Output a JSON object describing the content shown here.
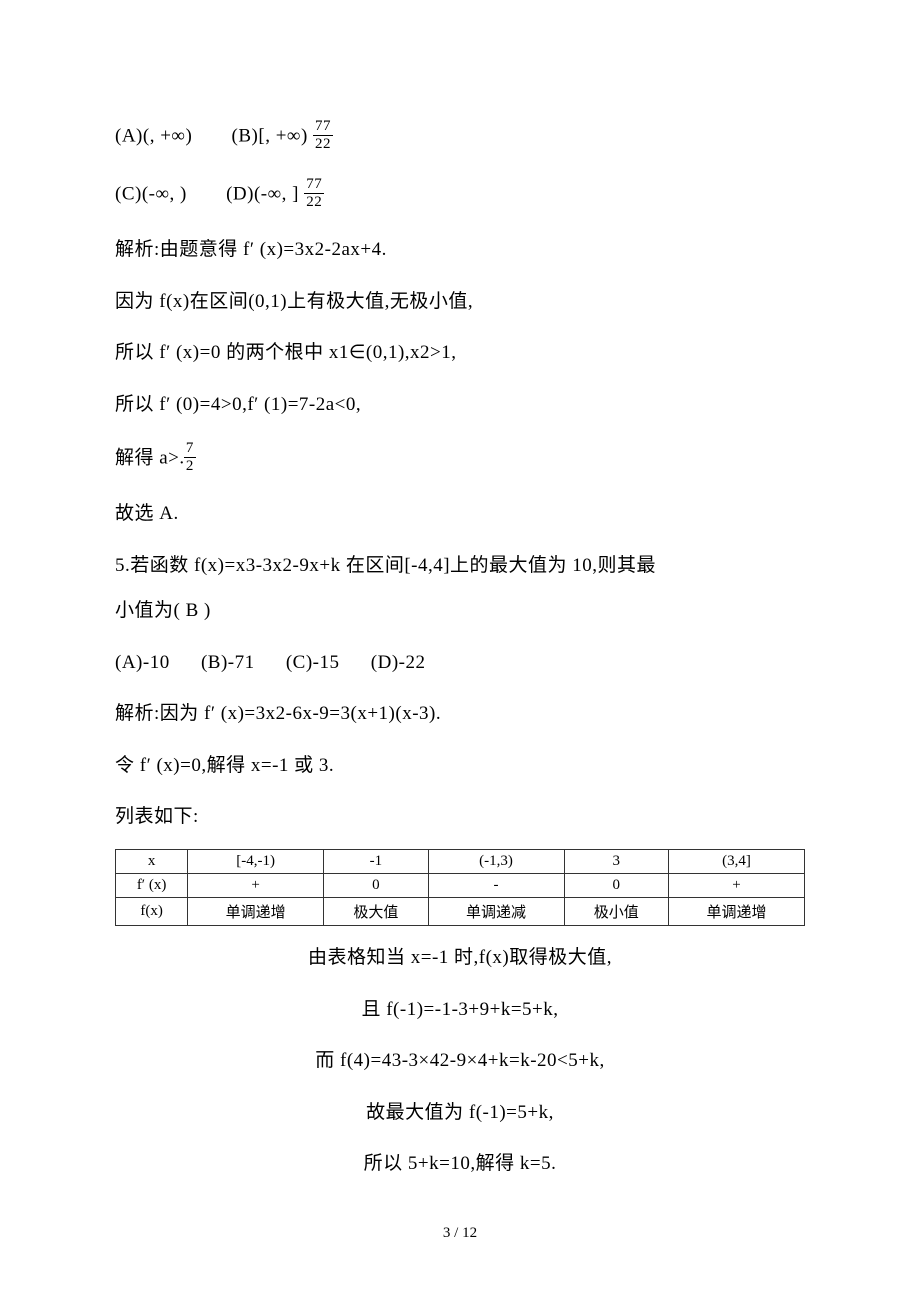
{
  "opts1": {
    "a": "(A)(, +∞)",
    "b": "(B)[, +∞)",
    "frac_num": "77",
    "frac_den": "22"
  },
  "opts2": {
    "c": "(C)(-∞, )",
    "d": "(D)(-∞, ]",
    "frac_num": "77",
    "frac_den": "22"
  },
  "p1": "解析:由题意得 f′ (x)=3x2-2ax+4.",
  "p2": "因为 f(x)在区间(0,1)上有极大值,无极小值,",
  "p3": "所以 f′ (x)=0 的两个根中 x1∈(0,1),x2>1,",
  "p4": "所以 f′ (0)=4>0,f′ (1)=7-2a<0,",
  "p5_pre": "解得 a>.",
  "p5_frac_num": "7",
  "p5_frac_den": "2",
  "p6": "故选 A.",
  "p7a": "5.若函数 f(x)=x3-3x2-9x+k 在区间[-4,4]上的最大值为 10,则其最",
  "p7b": "小值为(  B  )",
  "opts3": {
    "a": "(A)-10",
    "b": "(B)-71",
    "c": "(C)-15",
    "d": "(D)-22"
  },
  "p8": "解析:因为 f′ (x)=3x2-6x-9=3(x+1)(x-3).",
  "p9": "令 f′ (x)=0,解得 x=-1 或 3.",
  "p10": "列表如下:",
  "table": {
    "rows": [
      [
        "x",
        "[-4,-1)",
        "-1",
        "(-1,3)",
        "3",
        "(3,4]"
      ],
      [
        "f′ (x)",
        "+",
        "0",
        "-",
        "0",
        "+"
      ],
      [
        "f(x)",
        "单调递增",
        "极大值",
        "单调递减",
        "极小值",
        "单调递增"
      ]
    ],
    "border_color": "#333333",
    "font_size": 15
  },
  "c1": "由表格知当 x=-1 时,f(x)取得极大值,",
  "c2": "且 f(-1)=-1-3+9+k=5+k,",
  "c3": "而 f(4)=43-3×42-9×4+k=k-20<5+k,",
  "c4": "故最大值为 f(-1)=5+k,",
  "c5": "所以 5+k=10,解得 k=5.",
  "page_num": "3 / 12"
}
